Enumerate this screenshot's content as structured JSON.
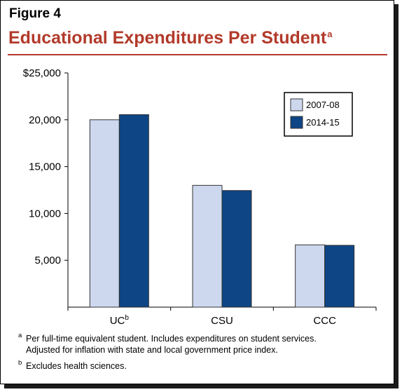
{
  "figure_label": "Figure 4",
  "title": "Educational Expenditures Per Student",
  "title_marker": "a",
  "colors": {
    "title": "#b23a2a",
    "series_2007": "#cdd8ef",
    "series_2014": "#0e4585"
  },
  "chart_data": {
    "type": "bar",
    "categories": [
      "UC",
      "CSU",
      "CCC"
    ],
    "category_markers": [
      "b",
      "",
      ""
    ],
    "series": [
      {
        "name": "2007-08",
        "values": [
          20000,
          13000,
          6650
        ]
      },
      {
        "name": "2014-15",
        "values": [
          20550,
          12450,
          6600
        ]
      }
    ],
    "ylim": [
      0,
      25000
    ],
    "yticks": [
      {
        "value": 5000,
        "label": "5,000"
      },
      {
        "value": 10000,
        "label": "10,000"
      },
      {
        "value": 15000,
        "label": "15,000"
      },
      {
        "value": 20000,
        "label": "20,000"
      },
      {
        "value": 25000,
        "label": "$25,000"
      }
    ],
    "legend_position": "top-right",
    "grid": false
  },
  "notes": [
    {
      "marker": "a",
      "lines": [
        "Per full-time equivalent student. Includes expenditures on student services.",
        "Adjusted for inflation with state and local government price index."
      ]
    },
    {
      "marker": "b",
      "lines": [
        "Excludes health sciences."
      ]
    }
  ]
}
